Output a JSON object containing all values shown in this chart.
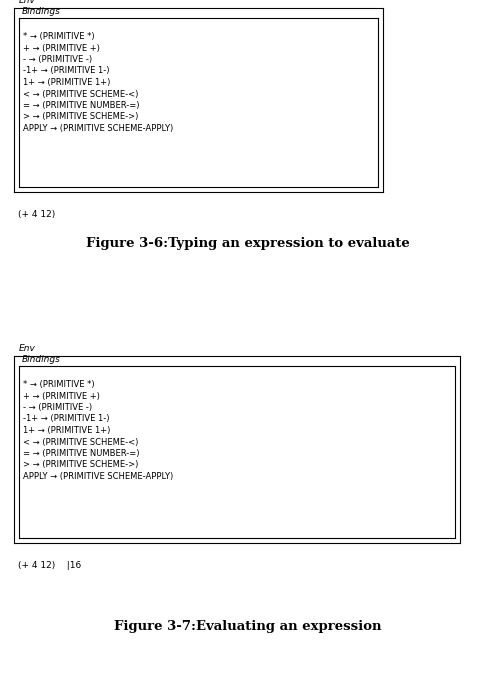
{
  "fig_width": 4.97,
  "fig_height": 6.94,
  "bg_color": "#ffffff",
  "panels": [
    {
      "title": "Figure 3-6:Typing an expression to evaluate",
      "bindings_lines": [
        "* → (PRIMITIVE *)",
        "+ → (PRIMITIVE +)",
        "- → (PRIMITIVE -)",
        "-1+ → (PRIMITIVE 1-)",
        "1+ → (PRIMITIVE 1+)",
        "< → (PRIMITIVE SCHEME-<)",
        "= → (PRIMITIVE NUMBER-=)",
        "> → (PRIMITIVE SCHEME->)",
        "APPLY → (PRIMITIVE SCHEME-APPLY)"
      ],
      "repl_line": "(+ 4 12)"
    },
    {
      "title": "Figure 3-7:Evaluating an expression",
      "bindings_lines": [
        "* → (PRIMITIVE *)",
        "+ → (PRIMITIVE +)",
        "- → (PRIMITIVE -)",
        "-1+ → (PRIMITIVE 1-)",
        "1+ → (PRIMITIVE 1+)",
        "< → (PRIMITIVE SCHEME-<)",
        "= → (PRIMITIVE NUMBER-=)",
        "> → (PRIMITIVE SCHEME->)",
        "APPLY → (PRIMITIVE SCHEME-APPLY)"
      ],
      "repl_line": "(+ 4 12)    |16"
    }
  ],
  "monospace_fontsize": 6.0,
  "label_fontsize": 6.5,
  "title_fontsize": 9.5,
  "repl_fontsize": 6.5
}
